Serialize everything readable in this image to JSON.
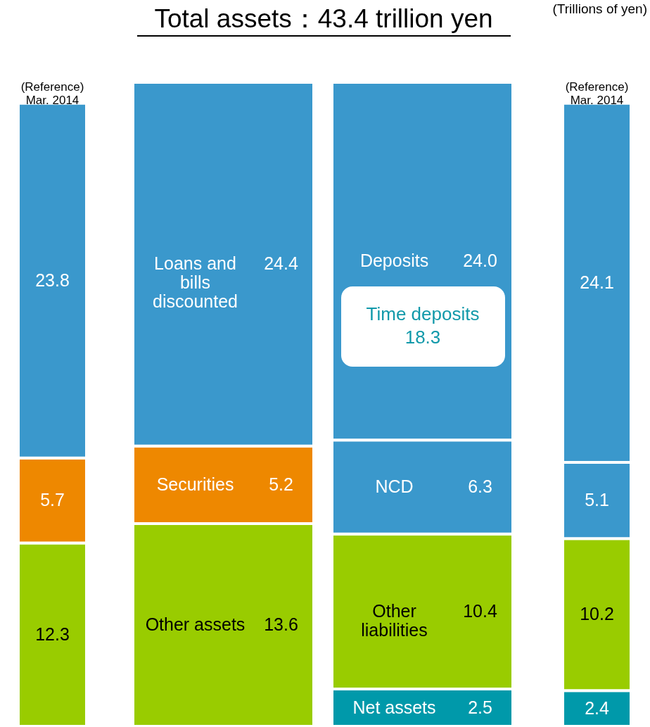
{
  "chart_data": {
    "type": "bar",
    "stacked": true,
    "title": "Total assets：43.4 trillion yen",
    "annotations": [
      "(Trillions of yen)",
      "Time deposits 18.3"
    ],
    "categories": [
      "(Reference) Mar. 2014",
      null,
      null,
      "(Reference) Mar. 2014"
    ],
    "series": [
      {
        "name": "Other assets",
        "color": "#99cc00",
        "values": [
          12.3,
          13.6,
          null,
          null
        ],
        "value_labels": [
          "12.3",
          "13.6",
          null,
          null
        ]
      },
      {
        "name": "Securities",
        "color": "#ee8800",
        "values": [
          5.7,
          5.2,
          null,
          null
        ],
        "value_labels": [
          "5.7",
          "5.2",
          null,
          null
        ]
      },
      {
        "name": "Loans and bills discounted",
        "color": "#3a98cc",
        "values": [
          23.8,
          24.4,
          null,
          null
        ],
        "value_labels": [
          "23.8",
          "24.4",
          null,
          null
        ]
      },
      {
        "name": "Net assets",
        "color": "#0099aa",
        "values": [
          null,
          null,
          2.5,
          2.4
        ],
        "value_labels": [
          null,
          null,
          "2.5",
          "2.4"
        ]
      },
      {
        "name": "Other liabilities",
        "color": "#99cc00",
        "values": [
          null,
          null,
          10.4,
          10.2
        ],
        "value_labels": [
          null,
          null,
          "10.4",
          "10.2"
        ]
      },
      {
        "name": "NCD",
        "color": "#3a98cc",
        "values": [
          null,
          null,
          6.3,
          5.1
        ],
        "value_labels": [
          null,
          null,
          "6.3",
          "5.1"
        ]
      },
      {
        "name": "Deposits",
        "color": "#3a98cc",
        "values": [
          null,
          null,
          24.0,
          24.1
        ],
        "value_labels": [
          null,
          null,
          "24.0",
          "24.1"
        ]
      }
    ]
  }
}
